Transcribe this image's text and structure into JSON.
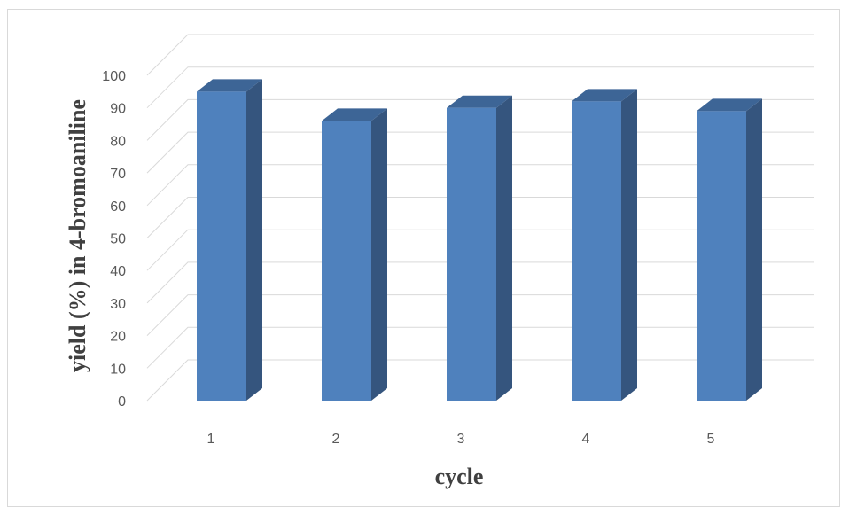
{
  "chart_data": {
    "type": "bar",
    "style": "3d-column",
    "categories": [
      "1",
      "2",
      "3",
      "4",
      "5"
    ],
    "values": [
      95,
      86,
      90,
      92,
      89
    ],
    "xlabel": "cycle",
    "ylabel": "yield (%) in 4-bromoaniline",
    "ylim": [
      0,
      100
    ],
    "yticks": [
      0,
      10,
      20,
      30,
      40,
      50,
      60,
      70,
      80,
      90,
      100
    ],
    "grid": true,
    "legend": "none",
    "colors": {
      "bar_front": "#4f81bd",
      "bar_side": "#35557e",
      "bar_top": "#3d6596",
      "gridline": "#d9d9d9",
      "axis_text": "#595959",
      "title_text": "#404040"
    }
  }
}
